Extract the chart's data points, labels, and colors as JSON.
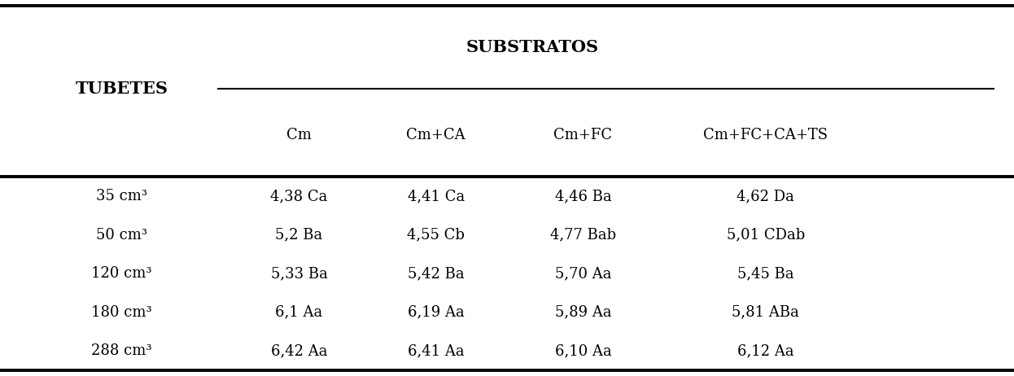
{
  "header_left": "TUBETES",
  "header_group": "SUBSTRATOS",
  "col_headers": [
    "Cm",
    "Cm+CA",
    "Cm+FC",
    "Cm+FC+CA+TS"
  ],
  "row_labels": [
    "35 cm³",
    "50 cm³",
    "120 cm³",
    "180 cm³",
    "288 cm³"
  ],
  "data": [
    [
      "4,38 Ca",
      "4,41 Ca",
      "4,46 Ba",
      "4,62 Da"
    ],
    [
      "5,2 Ba",
      "4,55 Cb",
      "4,77 Bab",
      "5,01 CDab"
    ],
    [
      "5,33 Ba",
      "5,42 Ba",
      "5,70 Aa",
      "5,45 Ba"
    ],
    [
      "6,1 Aa",
      "6,19 Aa",
      "5,89 Aa",
      "5,81 ABa"
    ],
    [
      "6,42 Aa",
      "6,41 Aa",
      "6,10 Aa",
      "6,12 Aa"
    ]
  ],
  "bg_color": "#ffffff",
  "text_color": "#000000",
  "header_fontsize": 15,
  "cell_fontsize": 13,
  "row_label_fontsize": 13,
  "col_header_fontsize": 13
}
